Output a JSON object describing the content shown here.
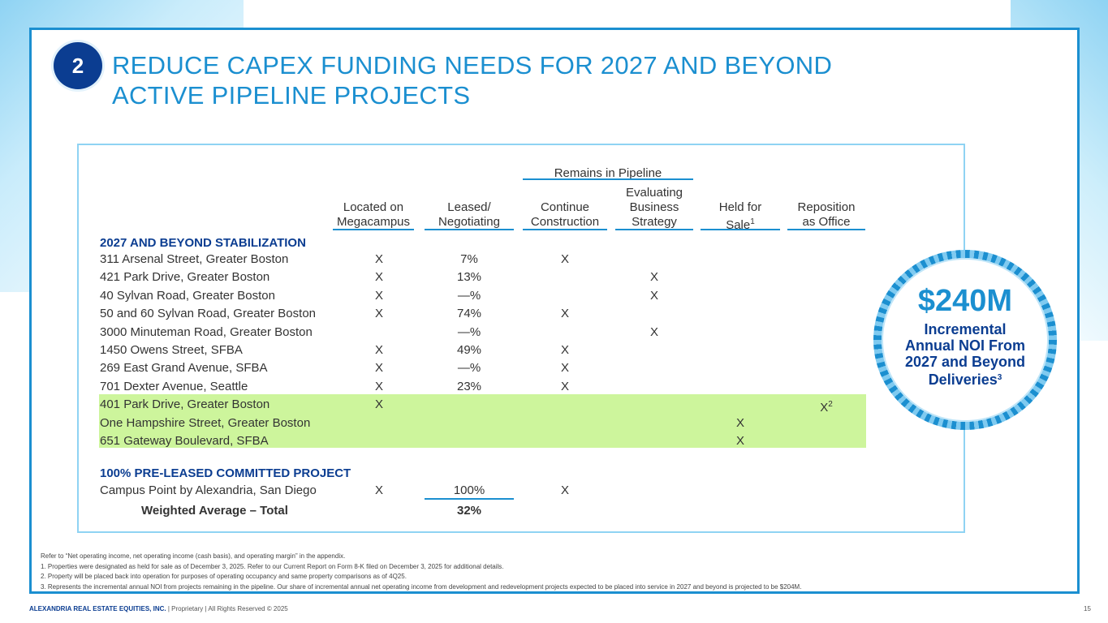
{
  "badge": "2",
  "title_line1": "REDUCE CAPEX FUNDING NEEDS FOR 2027 AND BEYOND",
  "title_line2": "ACTIVE PIPELINE PROJECTS",
  "table": {
    "group_header": "Remains in Pipeline",
    "col_located_1": "Located on",
    "col_located_2": "Megacampus",
    "col_leased_1": "Leased/",
    "col_leased_2": "Negotiating",
    "col_continue_1": "Continue",
    "col_continue_2": "Construction",
    "col_eval_1": "Evaluating",
    "col_eval_2": "Business",
    "col_eval_3": "Strategy",
    "col_held_1": "Held for",
    "col_held_2": "Sale",
    "col_held_sup": "1",
    "col_repo_1": "Reposition",
    "col_repo_2": "as Office",
    "section1": "2027 AND BEYOND STABILIZATION",
    "rows": [
      {
        "name": "311 Arsenal Street, Greater Boston",
        "mc": "X",
        "leased": "7%",
        "cc": "X",
        "eb": "",
        "hs": "",
        "ro": ""
      },
      {
        "name": "421 Park Drive, Greater Boston",
        "mc": "X",
        "leased": "13%",
        "cc": "",
        "eb": "X",
        "hs": "",
        "ro": ""
      },
      {
        "name": "40 Sylvan Road, Greater Boston",
        "mc": "X",
        "leased": "—%",
        "cc": "",
        "eb": "X",
        "hs": "",
        "ro": ""
      },
      {
        "name": "50 and 60 Sylvan Road, Greater Boston",
        "mc": "X",
        "leased": "74%",
        "cc": "X",
        "eb": "",
        "hs": "",
        "ro": ""
      },
      {
        "name": "3000 Minuteman Road, Greater Boston",
        "mc": "",
        "leased": "—%",
        "cc": "",
        "eb": "X",
        "hs": "",
        "ro": ""
      },
      {
        "name": "1450 Owens Street, SFBA",
        "mc": "X",
        "leased": "49%",
        "cc": "X",
        "eb": "",
        "hs": "",
        "ro": ""
      },
      {
        "name": "269 East Grand Avenue, SFBA",
        "mc": "X",
        "leased": "—%",
        "cc": "X",
        "eb": "",
        "hs": "",
        "ro": ""
      },
      {
        "name": "701 Dexter Avenue, Seattle",
        "mc": "X",
        "leased": "23%",
        "cc": "X",
        "eb": "",
        "hs": "",
        "ro": ""
      },
      {
        "name": "401 Park Drive, Greater Boston",
        "mc": "X",
        "leased": "",
        "cc": "",
        "eb": "",
        "hs": "",
        "ro": "X",
        "ro_sup": "2"
      },
      {
        "name": "One Hampshire Street, Greater Boston",
        "mc": "",
        "leased": "",
        "cc": "",
        "eb": "",
        "hs": "X",
        "ro": ""
      },
      {
        "name": "651 Gateway Boulevard, SFBA",
        "mc": "",
        "leased": "",
        "cc": "",
        "eb": "",
        "hs": "X",
        "ro": ""
      }
    ],
    "section2": "100% PRE-LEASED COMMITTED PROJECT",
    "committed": {
      "name": "Campus Point by Alexandria, San Diego",
      "mc": "X",
      "leased": "100%",
      "cc": "X"
    },
    "wavg_label": "Weighted Average – Total",
    "wavg_value": "32%"
  },
  "callout": {
    "value": "$240M",
    "line1": "Incremental",
    "line2": "Annual NOI From",
    "line3": "2027 and Beyond",
    "line4": "Deliveries",
    "sup": "3"
  },
  "notes": [
    "Refer to “Net operating income, net operating income (cash basis), and operating margin” in the appendix.",
    "1.   Properties were designated as held for sale as of December 3, 2025. Refer to our Current Report on Form 8-K filed on December 3, 2025 for additional details.",
    "2.   Property will be placed back into operation for purposes of operating occupancy and same property comparisons as of 4Q25.",
    "3.   Represents the incremental annual NOI from projects remaining in the pipeline. Our share of incremental annual net operating income from development and redevelopment projects expected to be placed into service in 2027 and beyond is projected to be $204M."
  ],
  "footer": {
    "company": "ALEXANDRIA REAL ESTATE EQUITIES, INC.",
    "rest": " | Proprietary | All Rights Reserved © 2025",
    "page": "15"
  }
}
